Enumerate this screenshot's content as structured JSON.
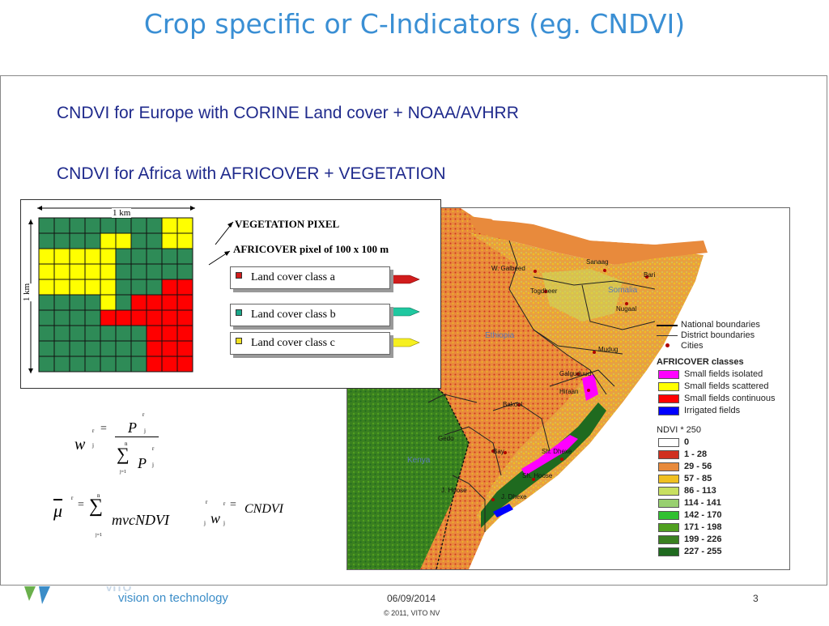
{
  "title": "Crop specific or C-Indicators (eg. CNDVI)",
  "subtitle1": "CNDVI for Europe with CORINE Land cover + NOAA/AVHRR",
  "subtitle2": "CNDVI for Africa  with AFRICOVER + VEGETATION",
  "diagram": {
    "scale_x": "1 km",
    "scale_y": "1 km",
    "veg_pixel": "VEGETATION PIXEL",
    "africover_pixel": "AFRICOVER pixel of 100 x 100 m",
    "classes": [
      {
        "label": "Land cover class a",
        "color": "#d11c1c"
      },
      {
        "label": "Land cover class b",
        "color": "#1aa88a"
      },
      {
        "label": "Land cover class c",
        "color": "#f0e020"
      }
    ],
    "grid_colors": {
      "green": "#2e8b57",
      "yellow": "#ffff00",
      "red": "#ff0000"
    }
  },
  "formula1": {
    "lhs": "w",
    "lhs_sup": "r",
    "lhs_sub": "j",
    "equals": "=",
    "num": "P",
    "num_sup": "r",
    "num_sub": "j",
    "sum": "∑",
    "sum_top": "n",
    "sum_bottom": "j=1",
    "den": "P",
    "den_sup": "r",
    "den_sub": "j"
  },
  "formula2": {
    "mu": "μ",
    "mu_sup": "r",
    "equals": "=",
    "sum": "∑",
    "sum_top": "n",
    "sum_bottom": "j=1",
    "body": "mvcNDVI",
    "body_sub": "j",
    "w": "w",
    "w_sup": "r",
    "w_sub": "j",
    "equals2": "=",
    "rhs_sup": "r",
    "rhs": "CNDVI"
  },
  "map": {
    "labels": [
      {
        "text": "W. Galbeed"
      },
      {
        "text": "Sanaag"
      },
      {
        "text": "Bari"
      },
      {
        "text": "Togdheer"
      },
      {
        "text": "Somalia"
      },
      {
        "text": "Nugaal"
      },
      {
        "text": "Ethiopia"
      },
      {
        "text": "Mudug"
      },
      {
        "text": "Galguduud"
      },
      {
        "text": "Hiraan"
      },
      {
        "text": "Bakool"
      },
      {
        "text": "Gedo"
      },
      {
        "text": "Bay"
      },
      {
        "text": "Sh. Dhexe"
      },
      {
        "text": "Kenya"
      },
      {
        "text": "Sh. Hoose"
      },
      {
        "text": "J. Hoose"
      },
      {
        "text": "J. Dhexe"
      }
    ],
    "boundary_legend": [
      {
        "label": "National boundaries"
      },
      {
        "label": "District boundaries"
      },
      {
        "label": "Cities"
      }
    ],
    "africover_title": "AFRICOVER classes",
    "africover_classes": [
      {
        "label": "Small fields isolated",
        "color": "#ff00ff"
      },
      {
        "label": "Small fields scattered",
        "color": "#ffff00"
      },
      {
        "label": "Small fields continuous",
        "color": "#ff0000"
      },
      {
        "label": "Irrigated fields",
        "color": "#0000ff"
      }
    ],
    "ndvi_title": "NDVI * 250",
    "ndvi_classes": [
      {
        "label": "0",
        "color": "#ffffff"
      },
      {
        "label": "1 - 28",
        "color": "#d03020"
      },
      {
        "label": "29 - 56",
        "color": "#e88a3c"
      },
      {
        "label": "57 - 85",
        "color": "#f0c020"
      },
      {
        "label": "86 - 113",
        "color": "#c8e060"
      },
      {
        "label": "114 - 141",
        "color": "#98d070"
      },
      {
        "label": "142 - 170",
        "color": "#30c030"
      },
      {
        "label": "171 - 198",
        "color": "#50a020"
      },
      {
        "label": "199 - 226",
        "color": "#3a8020"
      },
      {
        "label": "227 - 255",
        "color": "#1f6a1f"
      }
    ]
  },
  "footer": {
    "tagline": "vision on technology",
    "date": "06/09/2014",
    "copyright": "© 2011, VITO NV",
    "page": "3"
  }
}
